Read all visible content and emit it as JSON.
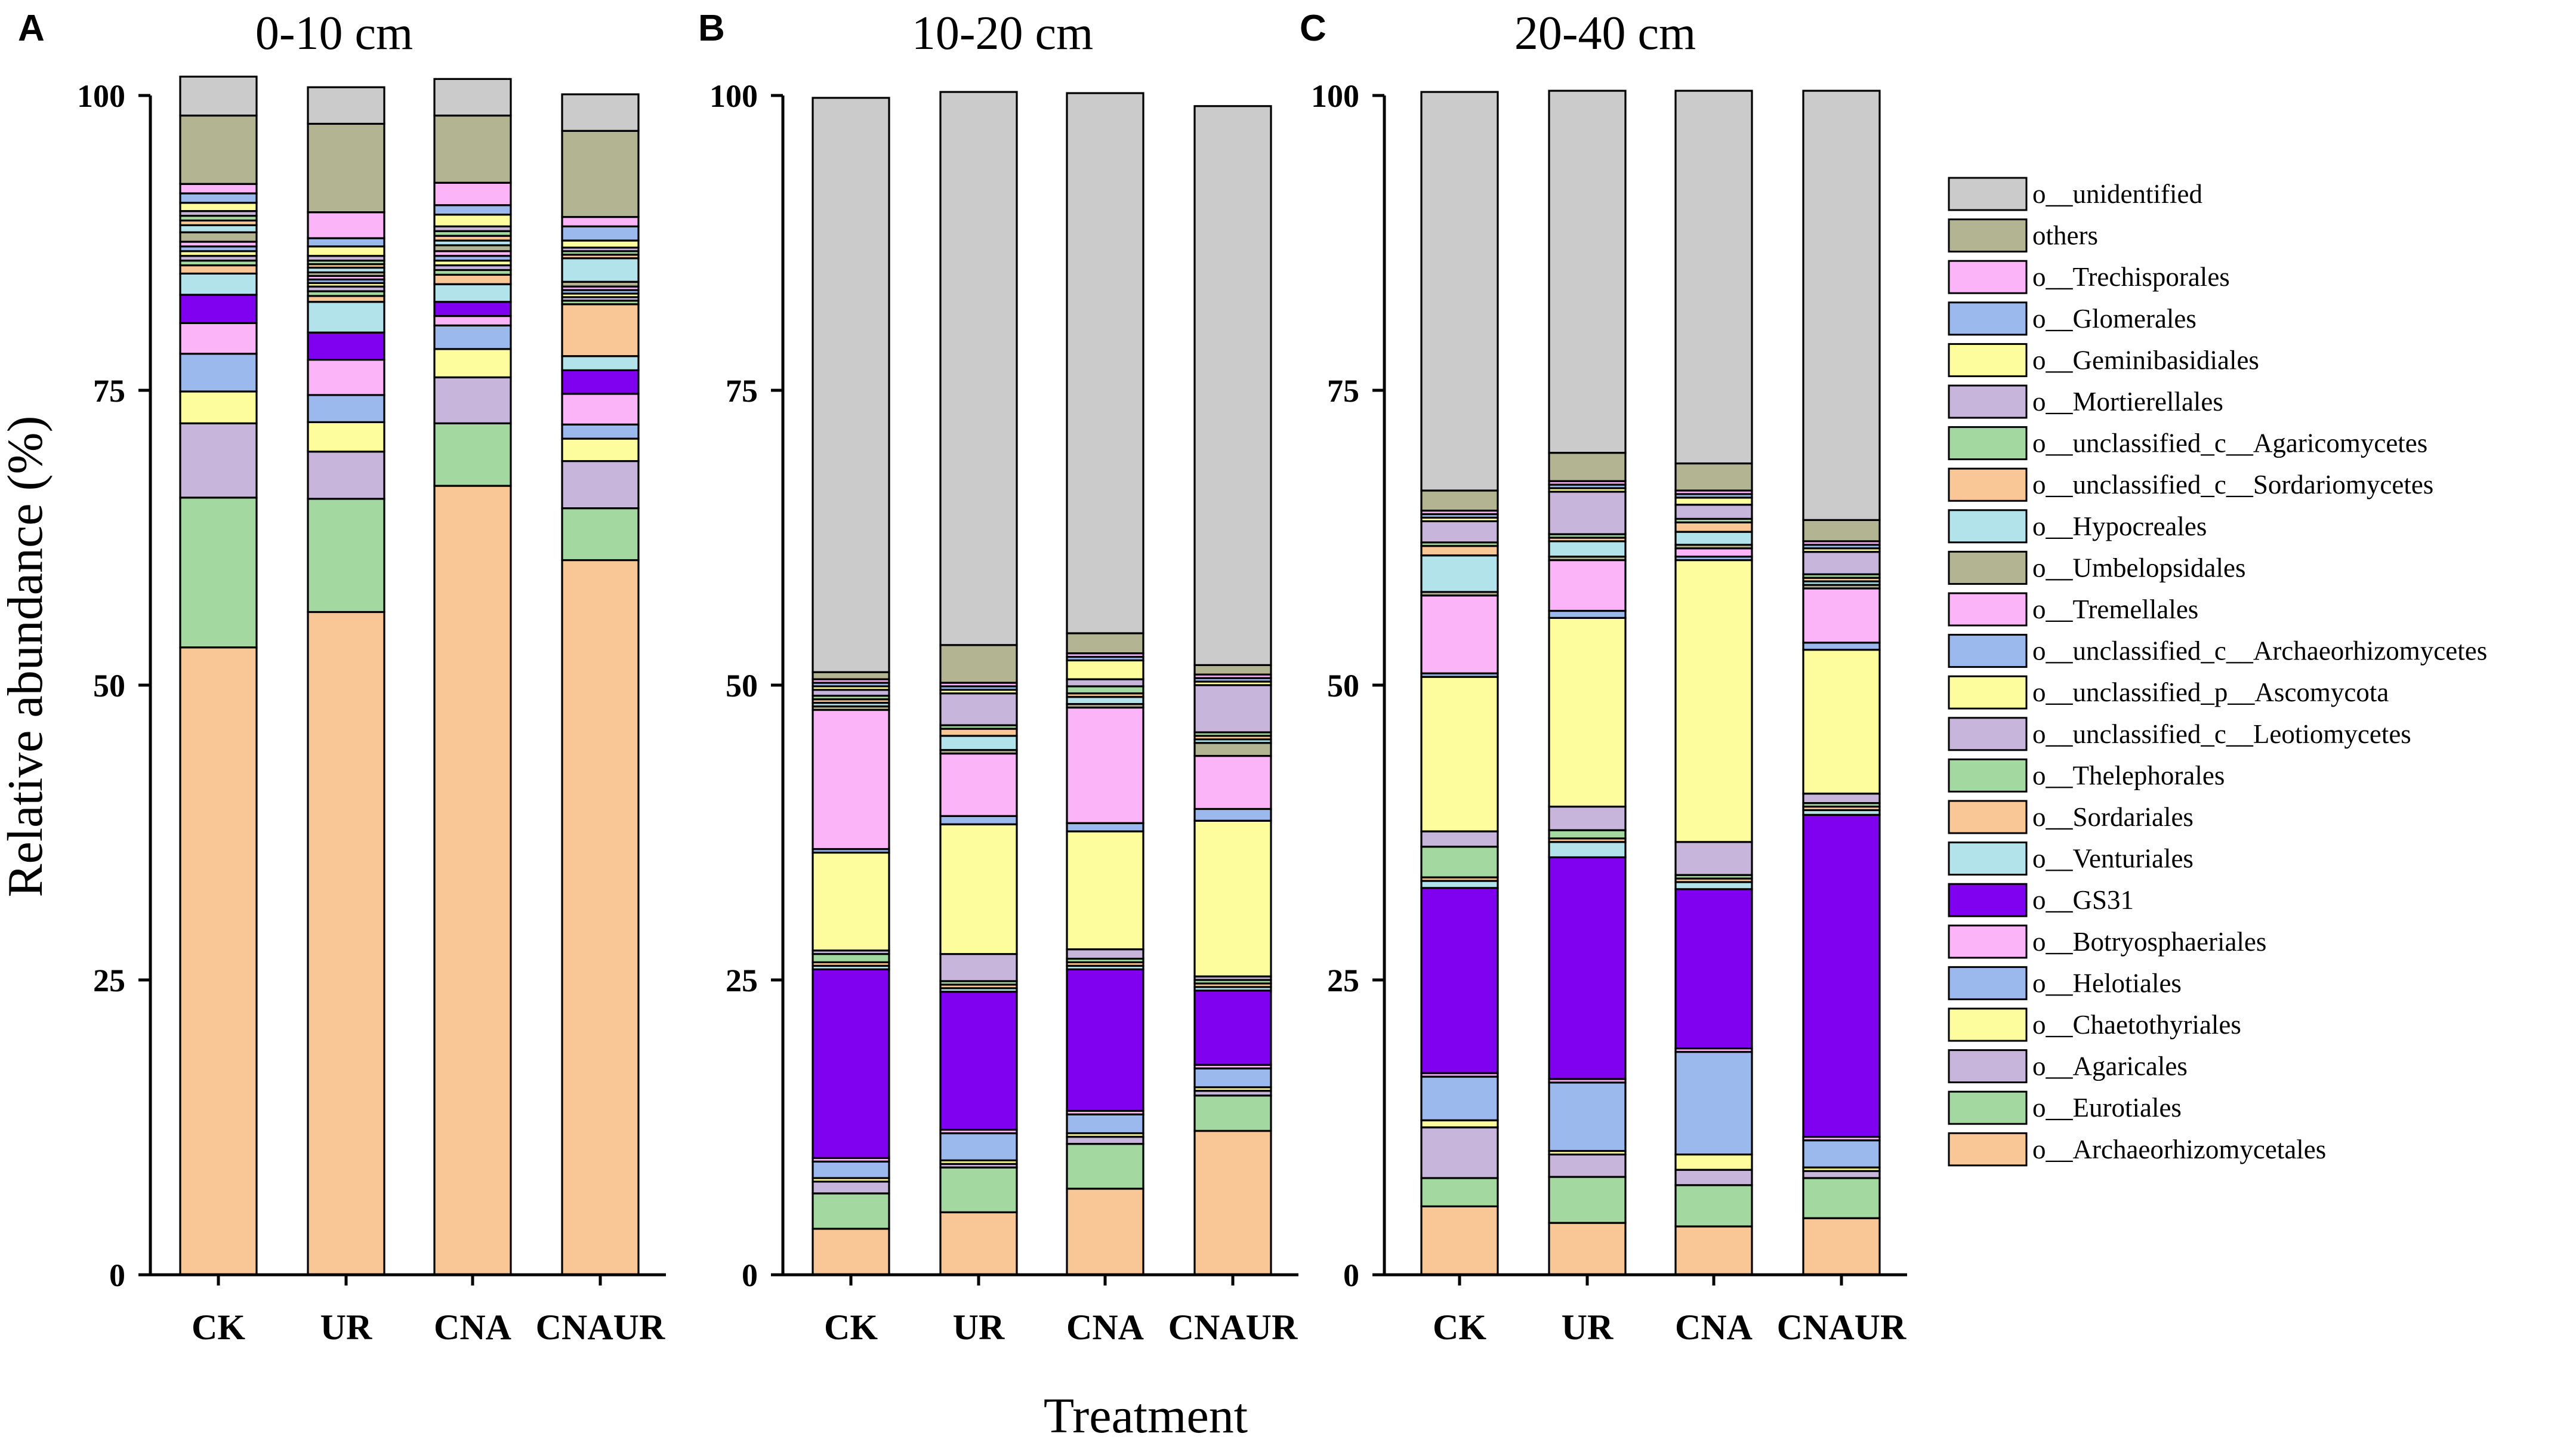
{
  "y_axis_label": "Relative abundance (%)",
  "x_axis_label": "Treatment",
  "legend": [
    {
      "name": "o__unidentified",
      "color": "#cbcbcb"
    },
    {
      "name": "others",
      "color": "#b3b592"
    },
    {
      "name": "o__Trechisporales",
      "color": "#fab4f7"
    },
    {
      "name": "o__Glomerales",
      "color": "#9cb9ee"
    },
    {
      "name": "o__Geminibasidiales",
      "color": "#fdfd9e"
    },
    {
      "name": "o__Mortierellales",
      "color": "#c7b5dc"
    },
    {
      "name": "o__unclassified_c__Agaricomycetes",
      "color": "#a3d9a1"
    },
    {
      "name": "o__unclassified_c__Sordariomycetes",
      "color": "#f9c696"
    },
    {
      "name": "o__Hypocreales",
      "color": "#b2e3ea"
    },
    {
      "name": "o__Umbelopsidales",
      "color": "#b3b592"
    },
    {
      "name": "o__Tremellales",
      "color": "#fab4f7"
    },
    {
      "name": "o__unclassified_c__Archaeorhizomycetes",
      "color": "#9cb9ee"
    },
    {
      "name": "o__unclassified_p__Ascomycota",
      "color": "#fdfd9e"
    },
    {
      "name": "o__unclassified_c__Leotiomycetes",
      "color": "#c7b5dc"
    },
    {
      "name": "o__Thelephorales",
      "color": "#a3d9a1"
    },
    {
      "name": "o__Sordariales",
      "color": "#f9c696"
    },
    {
      "name": "o__Venturiales",
      "color": "#b2e3ea"
    },
    {
      "name": "o__GS31",
      "color": "#8000f0"
    },
    {
      "name": "o__Botryosphaeriales",
      "color": "#fab4f7"
    },
    {
      "name": "o__Helotiales",
      "color": "#9cb9ee"
    },
    {
      "name": "o__Chaetothyriales",
      "color": "#fdfd9e"
    },
    {
      "name": "o__Agaricales",
      "color": "#c7b5dc"
    },
    {
      "name": "o__Eurotiales",
      "color": "#a3d9a1"
    },
    {
      "name": "o__Archaeorhizomycetales",
      "color": "#f9c696"
    }
  ],
  "chart_data": [
    {
      "type": "bar",
      "stacked": true,
      "panel": "A",
      "title": "0-10 cm",
      "xlabel": "Treatment",
      "ylabel": "Relative abundance (%)",
      "ylim": [
        0,
        100
      ],
      "yticks": [
        "0",
        "25",
        "50",
        "75",
        "100"
      ],
      "categories": [
        "CK",
        "UR",
        "CNA",
        "CNAUR"
      ],
      "series": [
        {
          "name": "o__Archaeorhizomycetales",
          "values": [
            53.2,
            56.2,
            66.9,
            60.6
          ]
        },
        {
          "name": "o__Eurotiales",
          "values": [
            12.7,
            9.6,
            5.3,
            4.4
          ]
        },
        {
          "name": "o__Agaricales",
          "values": [
            6.3,
            4.0,
            3.9,
            4.0
          ]
        },
        {
          "name": "o__Chaetothyriales",
          "values": [
            2.7,
            2.5,
            2.4,
            1.9
          ]
        },
        {
          "name": "o__Helotiales",
          "values": [
            3.2,
            2.3,
            2.0,
            1.2
          ]
        },
        {
          "name": "o__Botryosphaeriales",
          "values": [
            2.6,
            3.0,
            0.8,
            2.6
          ]
        },
        {
          "name": "o__GS31",
          "values": [
            2.4,
            2.3,
            1.2,
            2.0
          ]
        },
        {
          "name": "o__Venturiales",
          "values": [
            1.8,
            2.6,
            1.5,
            1.2
          ]
        },
        {
          "name": "o__Sordariales",
          "values": [
            0.7,
            0.5,
            0.8,
            4.4
          ]
        },
        {
          "name": "o__Thelephorales",
          "values": [
            0.4,
            0.4,
            0.4,
            0.3
          ]
        },
        {
          "name": "o__unclassified_c__Leotiomycetes",
          "values": [
            0.4,
            0.4,
            0.4,
            0.3
          ]
        },
        {
          "name": "o__unclassified_p__Ascomycota",
          "values": [
            0.4,
            0.3,
            0.4,
            0.3
          ]
        },
        {
          "name": "o__unclassified_c__Archaeorhizomycetes",
          "values": [
            0.4,
            0.3,
            0.4,
            0.3
          ]
        },
        {
          "name": "o__Tremellales",
          "values": [
            0.4,
            0.3,
            0.4,
            0.3
          ]
        },
        {
          "name": "o__Umbelopsidales",
          "values": [
            0.8,
            0.3,
            0.5,
            0.4
          ]
        },
        {
          "name": "o__Hypocreales",
          "values": [
            0.6,
            0.4,
            0.4,
            2.0
          ]
        },
        {
          "name": "o__unclassified_c__Sordariomycetes",
          "values": [
            0.4,
            0.3,
            0.4,
            0.3
          ]
        },
        {
          "name": "o__unclassified_c__Agaricomycetes",
          "values": [
            0.4,
            0.3,
            0.4,
            0.3
          ]
        },
        {
          "name": "o__Mortierellales",
          "values": [
            0.4,
            0.4,
            0.4,
            0.3
          ]
        },
        {
          "name": "o__Geminibasidiales",
          "values": [
            0.7,
            0.8,
            1.0,
            0.6
          ]
        },
        {
          "name": "o__Glomerales",
          "values": [
            0.8,
            0.7,
            0.8,
            1.2
          ]
        },
        {
          "name": "o__Trechisporales",
          "values": [
            0.8,
            2.2,
            1.9,
            0.8
          ]
        },
        {
          "name": "others",
          "values": [
            5.8,
            7.5,
            5.7,
            7.3
          ]
        },
        {
          "name": "o__unidentified",
          "values": [
            3.3,
            3.1,
            3.1,
            3.1
          ]
        }
      ]
    },
    {
      "type": "bar",
      "stacked": true,
      "panel": "B",
      "title": "10-20 cm",
      "xlabel": "Treatment",
      "ylabel": "Relative abundance (%)",
      "ylim": [
        0,
        100
      ],
      "yticks": [
        "0",
        "25",
        "50",
        "75",
        "100"
      ],
      "categories": [
        "CK",
        "UR",
        "CNA",
        "CNAUR"
      ],
      "series": [
        {
          "name": "o__Archaeorhizomycetales",
          "values": [
            3.9,
            5.3,
            7.3,
            12.2
          ]
        },
        {
          "name": "o__Eurotiales",
          "values": [
            3.0,
            3.8,
            3.8,
            3.0
          ]
        },
        {
          "name": "o__Agaricales",
          "values": [
            1.0,
            0.3,
            0.6,
            0.4
          ]
        },
        {
          "name": "o__Chaetothyriales",
          "values": [
            0.3,
            0.3,
            0.3,
            0.3
          ]
        },
        {
          "name": "o__Helotiales",
          "values": [
            1.4,
            2.3,
            1.6,
            1.6
          ]
        },
        {
          "name": "o__Botryosphaeriales",
          "values": [
            0.3,
            0.3,
            0.3,
            0.3
          ]
        },
        {
          "name": "o__GS31",
          "values": [
            16.0,
            11.7,
            12.0,
            6.3
          ]
        },
        {
          "name": "o__Venturiales",
          "values": [
            0.3,
            0.3,
            0.3,
            0.3
          ]
        },
        {
          "name": "o__Sordariales",
          "values": [
            0.3,
            0.3,
            0.3,
            0.3
          ]
        },
        {
          "name": "o__Thelephorales",
          "values": [
            0.7,
            0.3,
            0.3,
            0.3
          ]
        },
        {
          "name": "o__unclassified_c__Leotiomycetes",
          "values": [
            0.3,
            2.3,
            0.8,
            0.3
          ]
        },
        {
          "name": "o__unclassified_p__Ascomycota",
          "values": [
            8.3,
            11.0,
            10.0,
            13.2
          ]
        },
        {
          "name": "o__unclassified_c__Archaeorhizomycetes",
          "values": [
            0.3,
            0.7,
            0.7,
            1.0
          ]
        },
        {
          "name": "o__Tremellales",
          "values": [
            11.8,
            5.3,
            9.8,
            4.5
          ]
        },
        {
          "name": "o__Umbelopsidales",
          "values": [
            0.3,
            0.3,
            0.3,
            1.1
          ]
        },
        {
          "name": "o__Hypocreales",
          "values": [
            0.3,
            1.2,
            0.6,
            0.3
          ]
        },
        {
          "name": "o__unclassified_c__Sordariomycetes",
          "values": [
            0.3,
            0.6,
            0.3,
            0.3
          ]
        },
        {
          "name": "o__unclassified_c__Agaricomycetes",
          "values": [
            0.3,
            0.3,
            0.6,
            0.3
          ]
        },
        {
          "name": "o__Mortierellales",
          "values": [
            0.5,
            2.7,
            0.6,
            4.0
          ]
        },
        {
          "name": "o__Geminibasidiales",
          "values": [
            0.3,
            0.3,
            1.6,
            0.3
          ]
        },
        {
          "name": "o__Glomerales",
          "values": [
            0.3,
            0.3,
            0.3,
            0.3
          ]
        },
        {
          "name": "o__Trechisporales",
          "values": [
            0.3,
            0.3,
            0.3,
            0.3
          ]
        },
        {
          "name": "others",
          "values": [
            0.6,
            3.2,
            1.7,
            0.8
          ]
        },
        {
          "name": "o__unidentified",
          "values": [
            48.7,
            46.9,
            45.8,
            47.4
          ]
        }
      ]
    },
    {
      "type": "bar",
      "stacked": true,
      "panel": "C",
      "title": "20-40 cm",
      "xlabel": "Treatment",
      "ylabel": "Relative abundance (%)",
      "ylim": [
        0,
        100
      ],
      "yticks": [
        "0",
        "25",
        "50",
        "75",
        "100"
      ],
      "categories": [
        "CK",
        "UR",
        "CNA",
        "CNAUR"
      ],
      "series": [
        {
          "name": "o__Archaeorhizomycetales",
          "values": [
            5.8,
            4.4,
            4.1,
            4.8
          ]
        },
        {
          "name": "o__Eurotiales",
          "values": [
            2.4,
            3.9,
            3.5,
            3.4
          ]
        },
        {
          "name": "o__Agaricales",
          "values": [
            4.3,
            1.9,
            1.3,
            0.6
          ]
        },
        {
          "name": "o__Chaetothyriales",
          "values": [
            0.6,
            0.3,
            1.3,
            0.3
          ]
        },
        {
          "name": "o__Helotiales",
          "values": [
            3.7,
            5.8,
            8.7,
            2.3
          ]
        },
        {
          "name": "o__Botryosphaeriales",
          "values": [
            0.3,
            0.3,
            0.3,
            0.3
          ]
        },
        {
          "name": "o__GS31",
          "values": [
            15.7,
            18.8,
            13.5,
            27.3
          ]
        },
        {
          "name": "o__Venturiales",
          "values": [
            0.6,
            1.3,
            0.6,
            0.4
          ]
        },
        {
          "name": "o__Sordariales",
          "values": [
            0.3,
            0.3,
            0.3,
            0.3
          ]
        },
        {
          "name": "o__Thelephorales",
          "values": [
            2.6,
            0.7,
            0.3,
            0.3
          ]
        },
        {
          "name": "o__unclassified_c__Leotiomycetes",
          "values": [
            1.3,
            2.0,
            2.8,
            0.8
          ]
        },
        {
          "name": "o__unclassified_p__Ascomycota",
          "values": [
            13.1,
            16.0,
            23.9,
            12.2
          ]
        },
        {
          "name": "o__unclassified_c__Archaeorhizomycetes",
          "values": [
            0.3,
            0.6,
            0.3,
            0.6
          ]
        },
        {
          "name": "o__Tremellales",
          "values": [
            6.6,
            4.3,
            0.7,
            4.6
          ]
        },
        {
          "name": "o__Umbelopsidales",
          "values": [
            0.3,
            0.3,
            0.3,
            0.3
          ]
        },
        {
          "name": "o__Hypocreales",
          "values": [
            3.1,
            1.3,
            1.1,
            0.3
          ]
        },
        {
          "name": "o__unclassified_c__Sordariomycetes",
          "values": [
            0.8,
            0.3,
            0.8,
            0.3
          ]
        },
        {
          "name": "o__unclassified_c__Agaricomycetes",
          "values": [
            0.3,
            0.3,
            0.3,
            0.3
          ]
        },
        {
          "name": "o__Mortierellales",
          "values": [
            1.8,
            3.6,
            1.2,
            1.9
          ]
        },
        {
          "name": "o__Geminibasidiales",
          "values": [
            0.3,
            0.3,
            0.6,
            0.3
          ]
        },
        {
          "name": "o__Glomerales",
          "values": [
            0.3,
            0.3,
            0.3,
            0.3
          ]
        },
        {
          "name": "o__Trechisporales",
          "values": [
            0.3,
            0.3,
            0.3,
            0.3
          ]
        },
        {
          "name": "others",
          "values": [
            1.7,
            2.4,
            2.3,
            1.8
          ]
        },
        {
          "name": "o__unidentified",
          "values": [
            33.8,
            30.7,
            31.6,
            36.4
          ]
        }
      ]
    }
  ]
}
